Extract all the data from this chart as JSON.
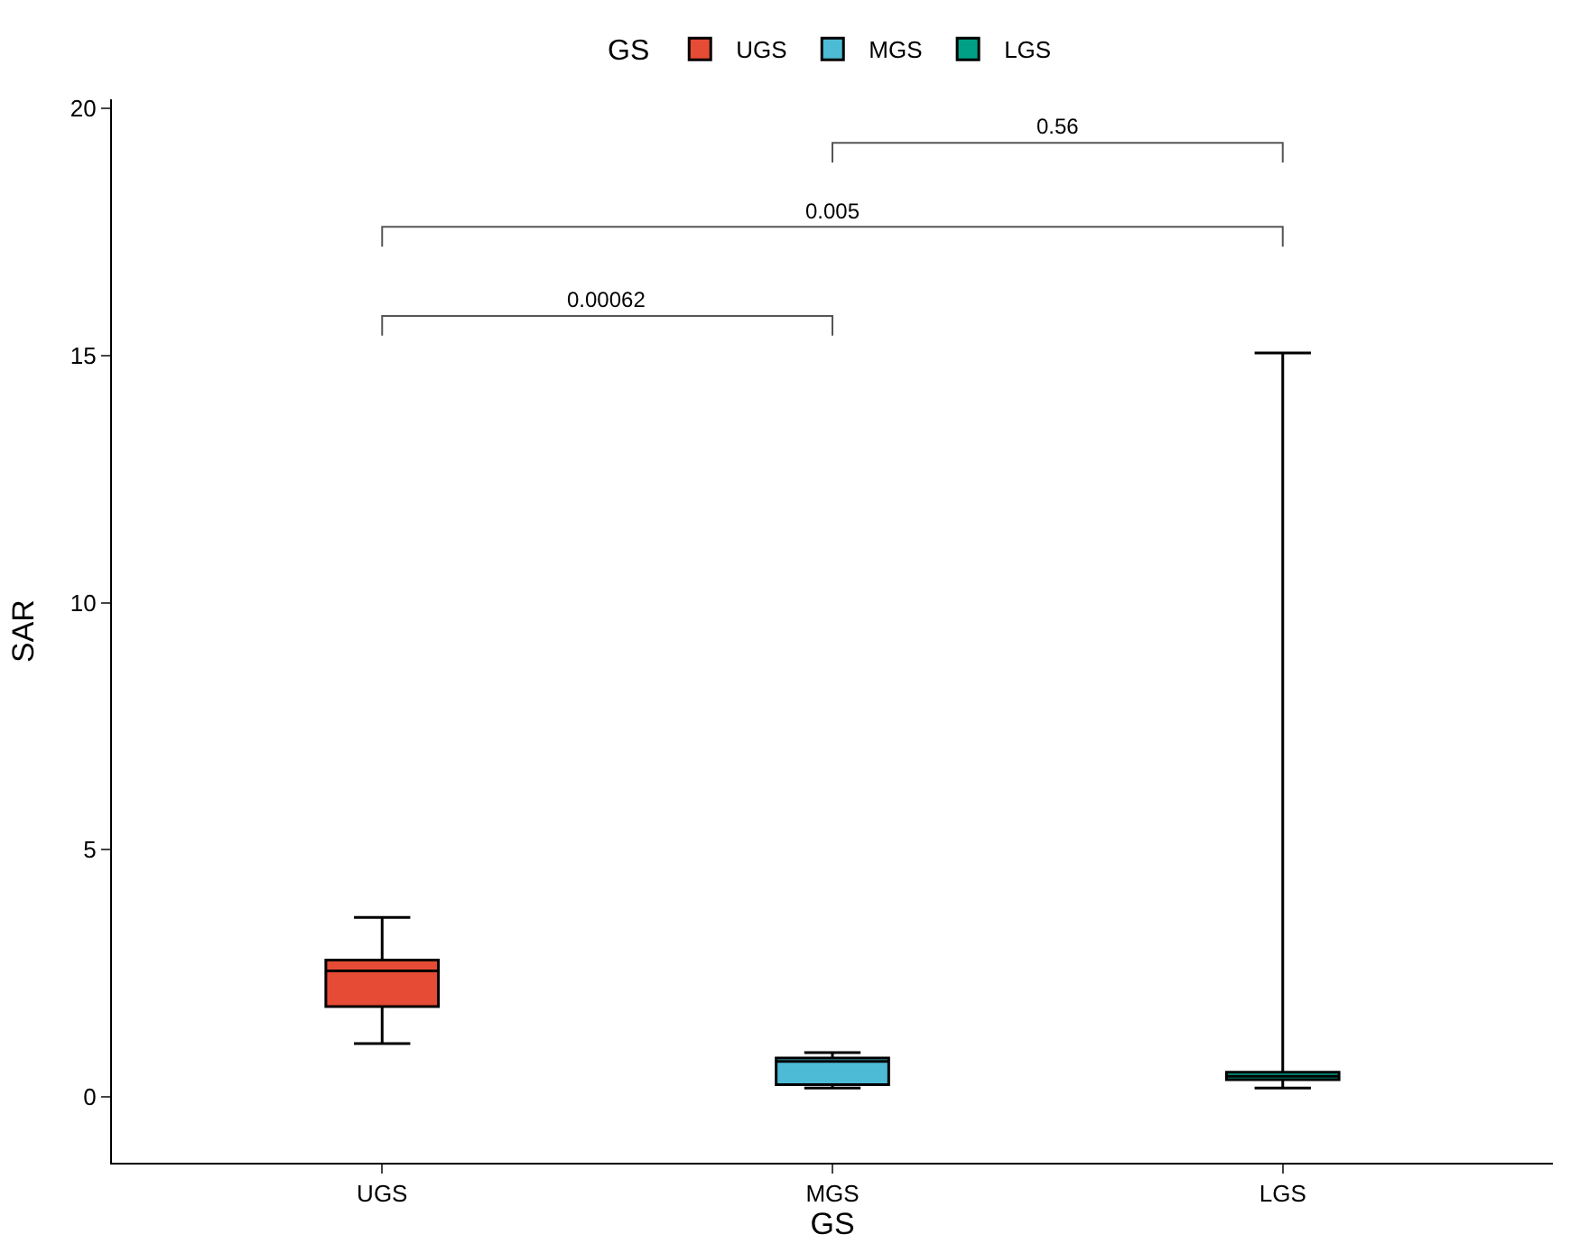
{
  "chart_data": {
    "type": "box",
    "xlabel": "GS",
    "ylabel": "SAR",
    "legend_title": "GS",
    "legend": "top",
    "categories": [
      "UGS",
      "MGS",
      "LGS"
    ],
    "series": [
      {
        "name": "UGS",
        "color": "#e64b35",
        "boxes": [
          {
            "low": 1.08,
            "q1": 1.83,
            "median": 2.55,
            "q3": 2.77,
            "high": 3.63
          },
          null,
          null
        ]
      },
      {
        "name": "MGS",
        "color": "#4dbbd5",
        "boxes": [
          null,
          {
            "low": 0.18,
            "q1": 0.25,
            "median": 0.72,
            "q3": 0.79,
            "high": 0.9
          },
          null
        ]
      },
      {
        "name": "LGS",
        "color": "#00a087",
        "boxes": [
          null,
          null,
          {
            "low": 0.18,
            "q1": 0.35,
            "median": 0.42,
            "q3": 0.5,
            "high": 15.05
          }
        ]
      }
    ],
    "ylim": [
      -1.33,
      20.18
    ],
    "yticks": [
      0,
      5,
      10,
      15,
      20
    ],
    "annotations": [
      "0.00062",
      "0.005",
      "0.56"
    ]
  }
}
